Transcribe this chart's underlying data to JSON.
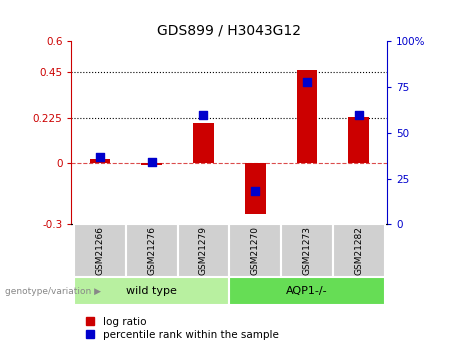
{
  "title": "GDS899 / H3043G12",
  "samples": [
    "GSM21266",
    "GSM21276",
    "GSM21279",
    "GSM21270",
    "GSM21273",
    "GSM21282"
  ],
  "log_ratio": [
    0.02,
    -0.01,
    0.2,
    -0.25,
    0.46,
    0.23
  ],
  "percentile_rank": [
    37,
    34,
    60,
    18,
    78,
    60
  ],
  "groups": [
    {
      "label": "wild type",
      "indices": [
        0,
        1,
        2
      ],
      "color": "#b8f0a0"
    },
    {
      "label": "AQP1-/-",
      "indices": [
        3,
        4,
        5
      ],
      "color": "#66dd55"
    }
  ],
  "ylim_left": [
    -0.3,
    0.6
  ],
  "ylim_right": [
    0,
    100
  ],
  "yticks_left": [
    -0.3,
    0.0,
    0.225,
    0.45,
    0.6
  ],
  "yticks_right": [
    0,
    25,
    50,
    75,
    100
  ],
  "hlines": [
    0.225,
    0.45
  ],
  "bar_color": "#cc0000",
  "dot_color": "#0000cc",
  "bar_width": 0.4,
  "dot_size": 40,
  "zero_line_color": "#cc0000",
  "title_fontsize": 10,
  "tick_fontsize": 7.5,
  "label_fontsize": 8,
  "legend_fontsize": 7.5,
  "sample_box_color": "#d0d0d0",
  "genotype_label_color": "#888888"
}
